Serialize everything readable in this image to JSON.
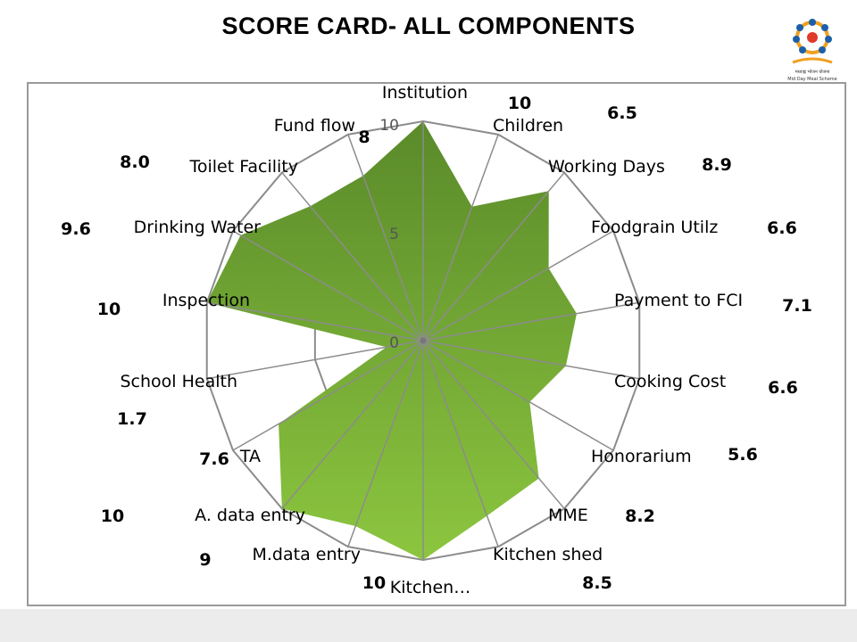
{
  "slide": {
    "title": "SCORE CARD- ALL COMPONENTS"
  },
  "logo": {
    "caption_line1": "मध्याह्न भोजन योजना",
    "caption_line2": "Mid Day Meal Scheme"
  },
  "colors": {
    "fill_dark": "#5a8a2a",
    "fill_light": "#8cc63f",
    "grid": "#8c8c8c"
  },
  "chart_data": {
    "type": "radar",
    "title": "",
    "range": [
      0,
      10
    ],
    "ticks": [
      "0",
      "5",
      "10"
    ],
    "grid": true,
    "categories": [
      "Institution",
      "Children",
      "Working Days",
      "Foodgrain Utilz",
      "Payment to FCI",
      "Cooking Cost",
      "Honorarium",
      "MME",
      "Kitchen shed",
      "Kitchen…",
      "M.data entry",
      "A. data entry",
      "TA",
      "School Health",
      "Inspection",
      "Drinking Water",
      "Toilet Facility",
      "Fund flow"
    ],
    "values": [
      10,
      6.5,
      8.9,
      6.6,
      7.1,
      6.6,
      5.6,
      8.2,
      8.5,
      10,
      9,
      10,
      7.6,
      1.7,
      10,
      9.6,
      8.0,
      8
    ],
    "value_labels": [
      "10",
      "6.5",
      "8.9",
      "6.6",
      "7.1",
      "6.6",
      "5.6",
      "8.2",
      "8.5",
      "10",
      "9",
      "10",
      "7.6",
      "1.7",
      "10",
      "9.6",
      "8.0",
      "8"
    ]
  }
}
